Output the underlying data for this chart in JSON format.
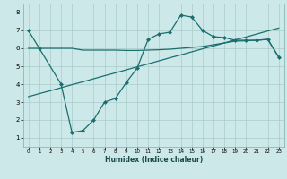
{
  "xlabel": "Humidex (Indice chaleur)",
  "bg_color": "#cce8e8",
  "line_color": "#1a6e6e",
  "xlim": [
    -0.5,
    23.5
  ],
  "ylim": [
    0.5,
    8.5
  ],
  "xticks": [
    0,
    1,
    2,
    3,
    4,
    5,
    6,
    7,
    8,
    9,
    10,
    11,
    12,
    13,
    14,
    15,
    16,
    17,
    18,
    19,
    20,
    21,
    22,
    23
  ],
  "yticks": [
    1,
    2,
    3,
    4,
    5,
    6,
    7,
    8
  ],
  "line1_x": [
    0,
    1,
    2,
    3,
    4,
    5,
    6,
    7,
    8,
    9,
    10,
    11,
    12,
    13,
    14,
    15,
    16,
    17,
    18,
    19,
    20,
    21,
    22,
    23
  ],
  "line1_y": [
    6.0,
    6.0,
    6.0,
    6.0,
    6.0,
    5.9,
    5.9,
    5.9,
    5.9,
    5.88,
    5.88,
    5.9,
    5.92,
    5.95,
    6.0,
    6.05,
    6.1,
    6.2,
    6.3,
    6.4,
    6.42,
    6.45,
    6.5,
    5.5
  ],
  "line2_x": [
    0,
    1,
    2,
    3,
    4,
    5,
    6,
    7,
    8,
    9,
    10,
    11,
    12,
    13,
    14,
    15,
    16,
    17,
    18,
    19,
    20,
    21,
    22,
    23
  ],
  "line2_y": [
    3.3,
    3.47,
    3.63,
    3.8,
    3.97,
    4.13,
    4.3,
    4.47,
    4.63,
    4.8,
    4.97,
    5.13,
    5.3,
    5.47,
    5.63,
    5.8,
    5.97,
    6.13,
    6.3,
    6.47,
    6.63,
    6.8,
    6.97,
    7.13
  ],
  "line3_x": [
    0,
    1,
    3,
    4,
    5,
    6,
    7,
    8,
    9,
    10,
    11,
    12,
    13,
    14,
    15,
    16,
    17,
    18,
    19,
    20,
    21,
    22,
    23
  ],
  "line3_y": [
    7.0,
    6.0,
    4.0,
    1.3,
    1.4,
    2.0,
    3.0,
    3.2,
    4.1,
    4.9,
    6.5,
    6.8,
    6.9,
    7.85,
    7.75,
    7.0,
    6.65,
    6.6,
    6.45,
    6.45,
    6.45,
    6.5,
    5.5
  ]
}
